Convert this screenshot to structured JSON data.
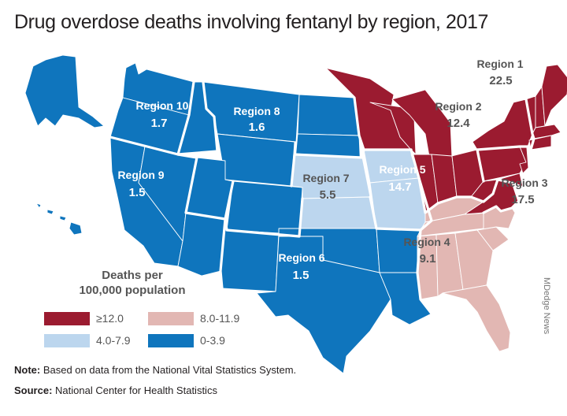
{
  "title": "Drug overdose deaths involving fentanyl by region, 2017",
  "colors": {
    "high": "#9b1b30",
    "mid_high": "#e2b7b3",
    "mid_low": "#bcd6ee",
    "low": "#0f75bd"
  },
  "regions": [
    {
      "id": "region-1",
      "label": "Region 1",
      "value": "22.5"
    },
    {
      "id": "region-2",
      "label": "Region 2",
      "value": "12.4"
    },
    {
      "id": "region-3",
      "label": "Region 3",
      "value": "17.5"
    },
    {
      "id": "region-4",
      "label": "Region 4",
      "value": "9.1"
    },
    {
      "id": "region-5",
      "label": "Region 5",
      "value": "14.7"
    },
    {
      "id": "region-6",
      "label": "Region 6",
      "value": "1.5"
    },
    {
      "id": "region-7",
      "label": "Region 7",
      "value": "5.5"
    },
    {
      "id": "region-8",
      "label": "Region 8",
      "value": "1.6"
    },
    {
      "id": "region-9",
      "label": "Region 9",
      "value": "1.5"
    },
    {
      "id": "region-10",
      "label": "Region 10",
      "value": "1.7"
    }
  ],
  "legend": {
    "title_line1": "Deaths per",
    "title_line2": "100,000 population",
    "items": [
      {
        "label": "≥12.0",
        "color_key": "high"
      },
      {
        "label": "8.0-11.9",
        "color_key": "mid_high"
      },
      {
        "label": "4.0-7.9",
        "color_key": "mid_low"
      },
      {
        "label": "0-3.9",
        "color_key": "low"
      }
    ]
  },
  "note": {
    "prefix": "Note:",
    "text": " Based on data from the National Vital Statistics System."
  },
  "source": {
    "prefix": "Source:",
    "text": " National Center for Health Statistics"
  },
  "credit": "MDedge News"
}
